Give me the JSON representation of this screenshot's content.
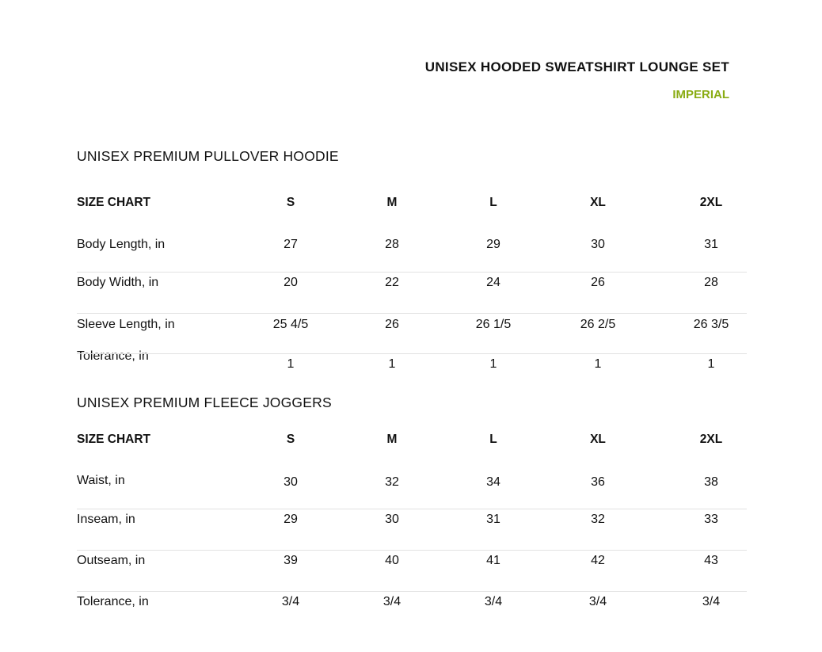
{
  "header": {
    "title": "UNISEX HOODED SWEATSHIRT LOUNGE SET",
    "unit_system": "IMPERIAL"
  },
  "accent_color": "#8aac14",
  "tables": [
    {
      "section_title": "UNISEX PREMIUM PULLOVER HOODIE",
      "header_label": "SIZE CHART",
      "sizes": [
        "S",
        "M",
        "L",
        "XL",
        "2XL"
      ],
      "rows": [
        {
          "label": "Body Length, in",
          "values": [
            "27",
            "28",
            "29",
            "30",
            "31"
          ]
        },
        {
          "label": "Body Width, in",
          "values": [
            "20",
            "22",
            "24",
            "26",
            "28"
          ]
        },
        {
          "label": "Sleeve Length, in",
          "values": [
            "25 4/5",
            "26",
            "26 1/5",
            "26 2/5",
            "26 3/5"
          ]
        },
        {
          "label": "Tolerance, in",
          "values": [
            "1",
            "1",
            "1",
            "1",
            "1"
          ]
        }
      ]
    },
    {
      "section_title": "UNISEX PREMIUM FLEECE JOGGERS",
      "header_label": "SIZE CHART",
      "sizes": [
        "S",
        "M",
        "L",
        "XL",
        "2XL"
      ],
      "rows": [
        {
          "label": "Waist, in",
          "values": [
            "30",
            "32",
            "34",
            "36",
            "38"
          ]
        },
        {
          "label": "Inseam, in",
          "values": [
            "29",
            "30",
            "31",
            "32",
            "33"
          ]
        },
        {
          "label": "Outseam, in",
          "values": [
            "39",
            "40",
            "41",
            "42",
            "43"
          ]
        },
        {
          "label": "Tolerance, in",
          "values": [
            "3/4",
            "3/4",
            "3/4",
            "3/4",
            "3/4"
          ]
        }
      ]
    }
  ]
}
